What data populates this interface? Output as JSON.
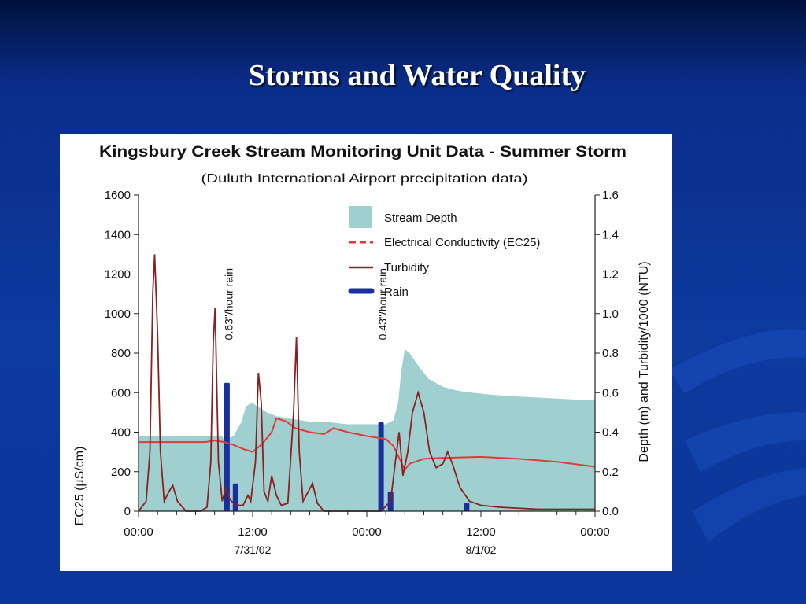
{
  "slide": {
    "title": "Storms and Water Quality"
  },
  "chart_data": {
    "type": "line",
    "title": "Kingsbury Creek Stream Monitoring Unit Data - Summer Storm",
    "subtitle": "(Duluth International Airport precipitation data)",
    "ylabel_left": "EC25 (µS/cm)",
    "ylabel_right": "Depth (m) and Turbidity/1000 (NTU)",
    "ylim_left": [
      0,
      1600
    ],
    "ylim_right": [
      0,
      1.6
    ],
    "left_ticks": [
      "0",
      "200",
      "400",
      "600",
      "800",
      "1000",
      "1200",
      "1400",
      "1600"
    ],
    "right_ticks": [
      "0.0",
      "0.2",
      "0.4",
      "0.6",
      "0.8",
      "1.0",
      "1.2",
      "1.4",
      "1.6"
    ],
    "x_range_hours": [
      0,
      48
    ],
    "x_ticks": [
      {
        "label": "00:00",
        "date": ""
      },
      {
        "label": "12:00",
        "date": "7/31/02"
      },
      {
        "label": "00:00",
        "date": ""
      },
      {
        "label": "12:00",
        "date": "8/1/02"
      },
      {
        "label": "00:00",
        "date": ""
      }
    ],
    "grid": false,
    "legend_position": "top-right",
    "annotations": [
      {
        "text": "0.63\"/hour rain",
        "x_hour": 9.3
      },
      {
        "text": "0.43\"/hour rain",
        "x_hour": 25.5
      }
    ],
    "series": [
      {
        "name": "Stream Depth",
        "style": "area",
        "axis": "right",
        "color": "#9fd0cf",
        "points": [
          [
            0,
            0.38
          ],
          [
            8.8,
            0.38
          ],
          [
            9.0,
            0.36
          ],
          [
            10.0,
            0.38
          ],
          [
            10.8,
            0.45
          ],
          [
            11.3,
            0.53
          ],
          [
            11.9,
            0.55
          ],
          [
            12.5,
            0.53
          ],
          [
            13.5,
            0.5
          ],
          [
            14.5,
            0.48
          ],
          [
            15.7,
            0.47
          ],
          [
            17,
            0.46
          ],
          [
            18.5,
            0.45
          ],
          [
            20,
            0.45
          ],
          [
            22,
            0.44
          ],
          [
            24,
            0.44
          ],
          [
            26,
            0.44
          ],
          [
            26.8,
            0.46
          ],
          [
            27.3,
            0.55
          ],
          [
            27.6,
            0.7
          ],
          [
            28.0,
            0.82
          ],
          [
            28.5,
            0.8
          ],
          [
            29.5,
            0.73
          ],
          [
            30.5,
            0.67
          ],
          [
            32,
            0.63
          ],
          [
            33.5,
            0.61
          ],
          [
            35,
            0.6
          ],
          [
            37,
            0.59
          ],
          [
            40,
            0.58
          ],
          [
            44,
            0.57
          ],
          [
            48,
            0.56
          ]
        ]
      },
      {
        "name": "Electrical Conductivity (EC25)",
        "style": "line",
        "axis": "left",
        "color": "#e23a3a",
        "points": [
          [
            0,
            350
          ],
          [
            4,
            350
          ],
          [
            7,
            350
          ],
          [
            8,
            358
          ],
          [
            9,
            350
          ],
          [
            10,
            335
          ],
          [
            11,
            315
          ],
          [
            12,
            300
          ],
          [
            13,
            340
          ],
          [
            14,
            400
          ],
          [
            14.5,
            470
          ],
          [
            15.5,
            455
          ],
          [
            16.5,
            420
          ],
          [
            18,
            400
          ],
          [
            19.5,
            390
          ],
          [
            20.5,
            420
          ],
          [
            22,
            400
          ],
          [
            24,
            380
          ],
          [
            26,
            365
          ],
          [
            26.8,
            330
          ],
          [
            27.5,
            260
          ],
          [
            28,
            210
          ],
          [
            28.5,
            240
          ],
          [
            30,
            265
          ],
          [
            32,
            270
          ],
          [
            36,
            275
          ],
          [
            40,
            265
          ],
          [
            44,
            250
          ],
          [
            48,
            225
          ]
        ]
      },
      {
        "name": "Turbidity",
        "style": "line",
        "axis": "right",
        "color": "#8b2020",
        "points": [
          [
            0,
            0.0
          ],
          [
            0.8,
            0.05
          ],
          [
            1.2,
            0.3
          ],
          [
            1.5,
            1.1
          ],
          [
            1.7,
            1.3
          ],
          [
            2.0,
            0.9
          ],
          [
            2.3,
            0.3
          ],
          [
            2.7,
            0.05
          ],
          [
            3.2,
            0.1
          ],
          [
            3.6,
            0.13
          ],
          [
            4.1,
            0.05
          ],
          [
            5,
            0.0
          ],
          [
            6.5,
            0.0
          ],
          [
            7.2,
            0.02
          ],
          [
            7.6,
            0.25
          ],
          [
            7.85,
            0.85
          ],
          [
            8.05,
            1.03
          ],
          [
            8.4,
            0.25
          ],
          [
            8.8,
            0.05
          ],
          [
            9.2,
            0.12
          ],
          [
            9.6,
            0.06
          ],
          [
            10.2,
            0.03
          ],
          [
            11.0,
            0.03
          ],
          [
            11.5,
            0.08
          ],
          [
            11.8,
            0.05
          ],
          [
            12.3,
            0.25
          ],
          [
            12.6,
            0.7
          ],
          [
            12.9,
            0.55
          ],
          [
            13.2,
            0.1
          ],
          [
            13.6,
            0.05
          ],
          [
            14.0,
            0.18
          ],
          [
            14.5,
            0.08
          ],
          [
            15.0,
            0.03
          ],
          [
            15.7,
            0.04
          ],
          [
            16.3,
            0.5
          ],
          [
            16.6,
            0.88
          ],
          [
            16.9,
            0.3
          ],
          [
            17.3,
            0.05
          ],
          [
            18.3,
            0.14
          ],
          [
            18.8,
            0.04
          ],
          [
            19.5,
            0.0
          ],
          [
            24,
            0.0
          ],
          [
            25.5,
            0.0
          ],
          [
            26.5,
            0.05
          ],
          [
            27.0,
            0.25
          ],
          [
            27.4,
            0.4
          ],
          [
            27.8,
            0.18
          ],
          [
            28.3,
            0.3
          ],
          [
            28.8,
            0.5
          ],
          [
            29.4,
            0.6
          ],
          [
            30.0,
            0.5
          ],
          [
            30.6,
            0.3
          ],
          [
            31.3,
            0.22
          ],
          [
            32.0,
            0.24
          ],
          [
            32.5,
            0.3
          ],
          [
            33.0,
            0.24
          ],
          [
            33.8,
            0.12
          ],
          [
            34.8,
            0.05
          ],
          [
            36,
            0.03
          ],
          [
            38,
            0.02
          ],
          [
            42,
            0.01
          ],
          [
            48,
            0.01
          ]
        ]
      },
      {
        "name": "Rain",
        "style": "bar",
        "axis": "left",
        "color": "#1a2f9e",
        "bars": [
          [
            9.3,
            650
          ],
          [
            10.2,
            140
          ],
          [
            25.5,
            450
          ],
          [
            26.5,
            100
          ],
          [
            34.5,
            40
          ]
        ]
      }
    ]
  }
}
